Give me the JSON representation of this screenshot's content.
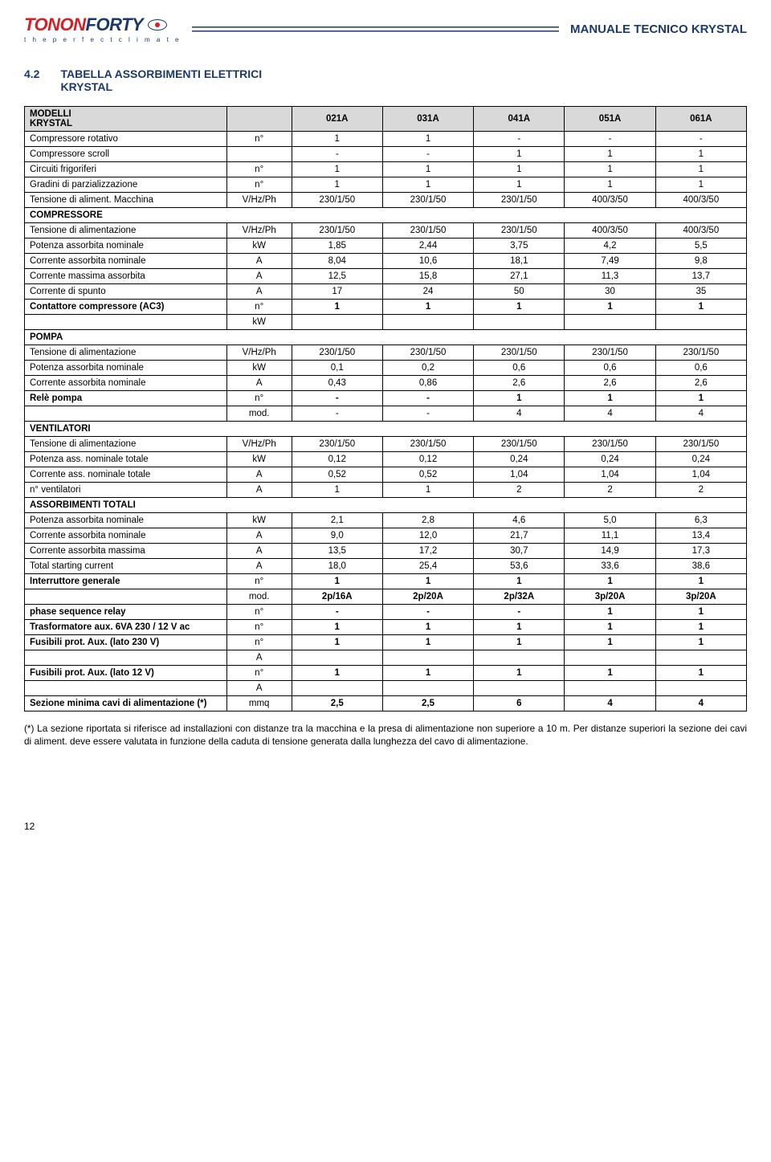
{
  "header": {
    "logo_part1": "TONON",
    "logo_part2": "FORTY",
    "tagline": "t h e   p e r f e c t   c l i m a t e",
    "doc_title": "MANUALE TECNICO KRYSTAL"
  },
  "section": {
    "number": "4.2",
    "title_l1": "TABELLA ASSORBIMENTI ELETTRICI",
    "title_l2": "KRYSTAL"
  },
  "table": {
    "head": {
      "models_l1": "MODELLI",
      "models_l2": "KRYSTAL",
      "unit_blank": "",
      "c1": "021A",
      "c2": "031A",
      "c3": "041A",
      "c4": "051A",
      "c5": "061A"
    },
    "r1": {
      "label": "Compressore rotativo",
      "unit": "n°",
      "v": [
        "1",
        "1",
        "-",
        "-",
        "-"
      ],
      "bold": false
    },
    "r2": {
      "label": "Compressore scroll",
      "unit": "",
      "v": [
        "-",
        "-",
        "1",
        "1",
        "1"
      ],
      "bold": false
    },
    "r3": {
      "label": "Circuiti frigoriferi",
      "unit": "n°",
      "v": [
        "1",
        "1",
        "1",
        "1",
        "1"
      ],
      "bold": false
    },
    "r4": {
      "label": "Gradini di parzializzazione",
      "unit": "n°",
      "v": [
        "1",
        "1",
        "1",
        "1",
        "1"
      ],
      "bold": false
    },
    "r5": {
      "label": "Tensione di aliment. Macchina",
      "unit": "V/Hz/Ph",
      "v": [
        "230/1/50",
        "230/1/50",
        "230/1/50",
        "400/3/50",
        "400/3/50"
      ],
      "bold": false
    },
    "s1": {
      "label": "COMPRESSORE"
    },
    "r6": {
      "label": "Tensione di alimentazione",
      "unit": "V/Hz/Ph",
      "v": [
        "230/1/50",
        "230/1/50",
        "230/1/50",
        "400/3/50",
        "400/3/50"
      ],
      "bold": false
    },
    "r7": {
      "label": "Potenza assorbita nominale",
      "unit": "kW",
      "v": [
        "1,85",
        "2,44",
        "3,75",
        "4,2",
        "5,5"
      ],
      "bold": false
    },
    "r8": {
      "label": "Corrente assorbita nominale",
      "unit": "A",
      "v": [
        "8,04",
        "10,6",
        "18,1",
        "7,49",
        "9,8"
      ],
      "bold": false
    },
    "r9": {
      "label": "Corrente massima assorbita",
      "unit": "A",
      "v": [
        "12,5",
        "15,8",
        "27,1",
        "11,3",
        "13,7"
      ],
      "bold": false
    },
    "r10": {
      "label": "Corrente di spunto",
      "unit": "A",
      "v": [
        "17",
        "24",
        "50",
        "30",
        "35"
      ],
      "bold": false
    },
    "r11": {
      "label": "Contattore compressore (AC3)",
      "unit": "n°",
      "v": [
        "1",
        "1",
        "1",
        "1",
        "1"
      ],
      "bold": true
    },
    "r12": {
      "label": "",
      "unit": "kW",
      "v": [
        "",
        "",
        "",
        "",
        ""
      ],
      "bold": false
    },
    "s2": {
      "label": "POMPA"
    },
    "r13": {
      "label": "Tensione di alimentazione",
      "unit": "V/Hz/Ph",
      "v": [
        "230/1/50",
        "230/1/50",
        "230/1/50",
        "230/1/50",
        "230/1/50"
      ],
      "bold": false
    },
    "r14": {
      "label": "Potenza assorbita nominale",
      "unit": "kW",
      "v": [
        "0,1",
        "0,2",
        "0,6",
        "0,6",
        "0,6"
      ],
      "bold": false
    },
    "r15": {
      "label": "Corrente assorbita nominale",
      "unit": "A",
      "v": [
        "0,43",
        "0,86",
        "2,6",
        "2,6",
        "2,6"
      ],
      "bold": false
    },
    "r16": {
      "label": "Relè pompa",
      "unit": "n°",
      "v": [
        "-",
        "-",
        "1",
        "1",
        "1"
      ],
      "bold": true
    },
    "r17": {
      "label": "",
      "unit": "mod.",
      "v": [
        "-",
        "-",
        "4",
        "4",
        "4"
      ],
      "bold": false
    },
    "s3": {
      "label": "VENTILATORI"
    },
    "r18": {
      "label": "Tensione di alimentazione",
      "unit": "V/Hz/Ph",
      "v": [
        "230/1/50",
        "230/1/50",
        "230/1/50",
        "230/1/50",
        "230/1/50"
      ],
      "bold": false
    },
    "r19": {
      "label": "Potenza ass. nominale totale",
      "unit": "kW",
      "v": [
        "0,12",
        "0,12",
        "0,24",
        "0,24",
        "0,24"
      ],
      "bold": false
    },
    "r20": {
      "label": "Corrente ass. nominale totale",
      "unit": "A",
      "v": [
        "0,52",
        "0,52",
        "1,04",
        "1,04",
        "1,04"
      ],
      "bold": false
    },
    "r21": {
      "label": "n° ventilatori",
      "unit": "A",
      "v": [
        "1",
        "1",
        "2",
        "2",
        "2"
      ],
      "bold": false
    },
    "s4": {
      "label": "ASSORBIMENTI TOTALI"
    },
    "r22": {
      "label": "Potenza assorbita nominale",
      "unit": "kW",
      "v": [
        "2,1",
        "2,8",
        "4,6",
        "5,0",
        "6,3"
      ],
      "bold": false
    },
    "r23": {
      "label": "Corrente assorbita nominale",
      "unit": "A",
      "v": [
        "9,0",
        "12,0",
        "21,7",
        "11,1",
        "13,4"
      ],
      "bold": false
    },
    "r24": {
      "label": "Corrente assorbita massima",
      "unit": "A",
      "v": [
        "13,5",
        "17,2",
        "30,7",
        "14,9",
        "17,3"
      ],
      "bold": false
    },
    "r25": {
      "label": "Total starting current",
      "unit": "A",
      "v": [
        "18,0",
        "25,4",
        "53,6",
        "33,6",
        "38,6"
      ],
      "bold": false
    },
    "r26": {
      "label": "Interruttore generale",
      "unit": "n°",
      "v": [
        "1",
        "1",
        "1",
        "1",
        "1"
      ],
      "bold": true
    },
    "r27": {
      "label": "",
      "unit": "mod.",
      "v": [
        "2p/16A",
        "2p/20A",
        "2p/32A",
        "3p/20A",
        "3p/20A"
      ],
      "bold": true
    },
    "r28": {
      "label": "phase sequence relay",
      "unit": "n°",
      "v": [
        "-",
        "-",
        "-",
        "1",
        "1"
      ],
      "bold": true
    },
    "r29": {
      "label": "Trasformatore aux. 6VA 230 / 12 V ac",
      "unit": "n°",
      "v": [
        "1",
        "1",
        "1",
        "1",
        "1"
      ],
      "bold": true
    },
    "r30": {
      "label": "Fusibili prot. Aux. (lato 230 V)",
      "unit": "n°",
      "v": [
        "1",
        "1",
        "1",
        "1",
        "1"
      ],
      "bold": true
    },
    "r31": {
      "label": "",
      "unit": "A",
      "v": [
        "",
        "",
        "",
        "",
        ""
      ],
      "bold": false
    },
    "r32": {
      "label": "Fusibili prot. Aux. (lato 12 V)",
      "unit": "n°",
      "v": [
        "1",
        "1",
        "1",
        "1",
        "1"
      ],
      "bold": true
    },
    "r33": {
      "label": "",
      "unit": "A",
      "v": [
        "",
        "",
        "",
        "",
        ""
      ],
      "bold": false
    },
    "r34": {
      "label": "Sezione minima cavi di alimentazione (*)",
      "unit": "mmq",
      "v": [
        "2,5",
        "2,5",
        "6",
        "4",
        "4"
      ],
      "bold": true
    },
    "row_order": [
      "r1",
      "r2",
      "r3",
      "r4",
      "r5",
      "s1",
      "r6",
      "r7",
      "r8",
      "r9",
      "r10",
      "r11",
      "r12",
      "s2",
      "r13",
      "r14",
      "r15",
      "r16",
      "r17",
      "s3",
      "r18",
      "r19",
      "r20",
      "r21",
      "s4",
      "r22",
      "r23",
      "r24",
      "r25",
      "r26",
      "r27",
      "r28",
      "r29",
      "r30",
      "r31",
      "r32",
      "r33",
      "r34"
    ]
  },
  "footnote": "(*) La sezione riportata si riferisce ad installazioni con distanze tra la macchina e la presa di alimentazione non superiore a 10 m. Per distanze superiori la sezione dei cavi di aliment. deve essere valutata in funzione della caduta di tensione generata dalla lunghezza del cavo di alimentazione.",
  "page_number": "12",
  "theme": {
    "brand_red": "#d42027",
    "brand_blue": "#1b3a6b",
    "table_header_bg": "#d9d9d9",
    "border_color": "#000000",
    "text_color": "#000000",
    "background": "#ffffff"
  }
}
